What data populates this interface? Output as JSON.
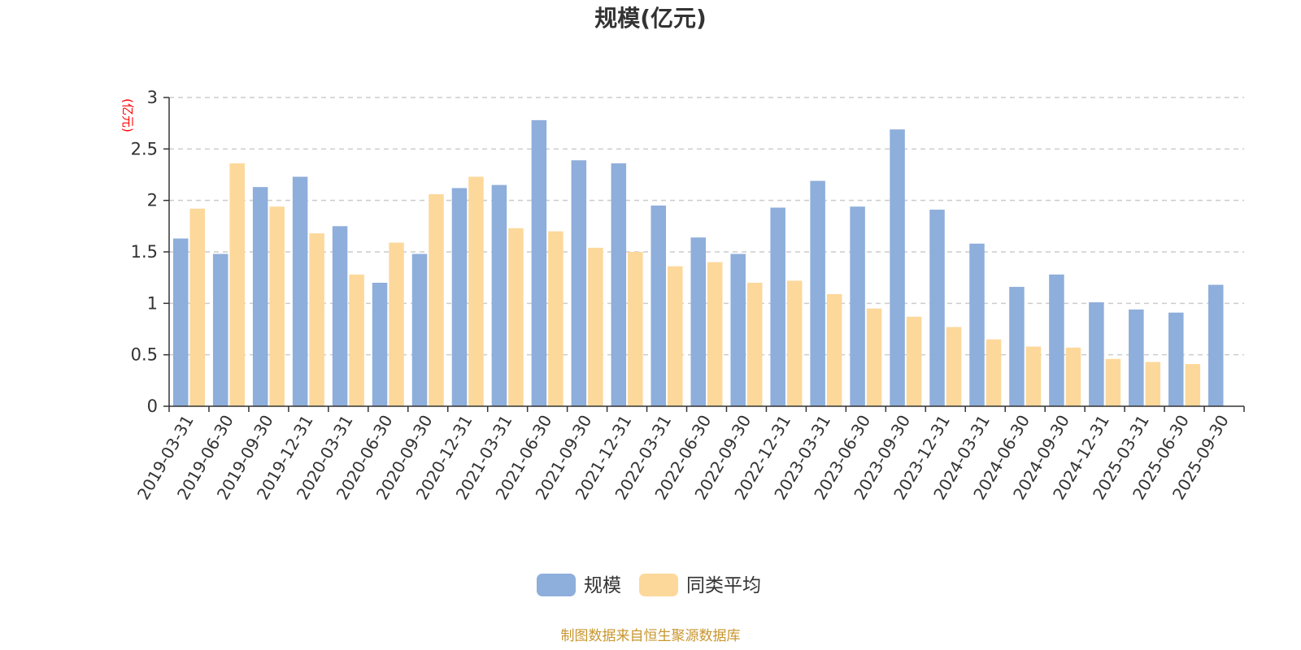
{
  "chart_data": {
    "type": "bar",
    "title": "规模(亿元)",
    "y_unit_label": "(亿元)",
    "ylim": [
      0,
      3
    ],
    "y_ticks": [
      "0",
      "0.5",
      "1",
      "1.5",
      "2",
      "2.5",
      "3"
    ],
    "grid": true,
    "legend_position": "bottom-center",
    "categories": [
      "2019-03-31",
      "2019-06-30",
      "2019-09-30",
      "2019-12-31",
      "2020-03-31",
      "2020-06-30",
      "2020-09-30",
      "2020-12-31",
      "2021-03-31",
      "2021-06-30",
      "2021-09-30",
      "2021-12-31",
      "2022-03-31",
      "2022-06-30",
      "2022-09-30",
      "2022-12-31",
      "2023-03-31",
      "2023-06-30",
      "2023-09-30",
      "2023-12-31",
      "2024-03-31",
      "2024-06-30",
      "2024-09-30",
      "2024-12-31",
      "2025-03-31",
      "2025-06-30",
      "2025-09-30"
    ],
    "series": [
      {
        "name": "规模",
        "color": "#8eaedb",
        "values": [
          1.63,
          1.48,
          2.13,
          2.23,
          1.75,
          1.2,
          1.48,
          2.12,
          2.15,
          2.78,
          2.39,
          2.36,
          1.95,
          1.64,
          1.48,
          1.93,
          2.19,
          1.94,
          2.69,
          1.91,
          1.58,
          1.16,
          1.28,
          1.01,
          0.94,
          0.91,
          1.18
        ]
      },
      {
        "name": "同类平均",
        "color": "#fdd89b",
        "values": [
          1.92,
          2.36,
          1.94,
          1.68,
          1.28,
          1.59,
          2.06,
          2.23,
          1.73,
          1.7,
          1.54,
          1.5,
          1.36,
          1.4,
          1.2,
          1.22,
          1.09,
          0.95,
          0.87,
          0.77,
          0.65,
          0.58,
          0.57,
          0.46,
          0.43,
          0.41,
          null
        ]
      }
    ]
  },
  "source_text": "制图数据来自恒生聚源数据库",
  "colors": {
    "axis": "#333333",
    "grid": "#cccccc",
    "unit_label": "#ff0000",
    "source": "#c8962e"
  }
}
